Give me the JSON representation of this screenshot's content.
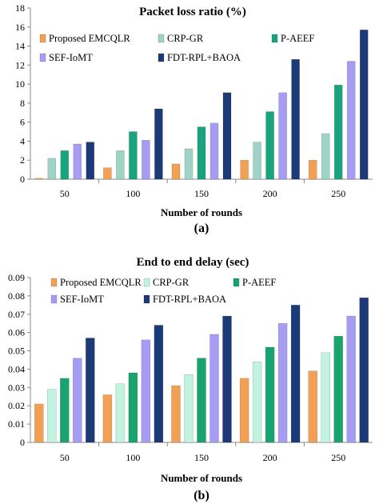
{
  "chart_data": [
    {
      "type": "bar",
      "title": "Packet loss ratio (%)",
      "xlabel": "Number of rounds",
      "ylabel": "",
      "caption": "(a)",
      "categories": [
        "50",
        "100",
        "150",
        "200",
        "250"
      ],
      "ylim": [
        0,
        18
      ],
      "yticks": [
        0,
        2,
        4,
        6,
        8,
        10,
        12,
        14,
        16,
        18
      ],
      "series": [
        {
          "name": "Proposed EMCQLR",
          "color": "#f2a154",
          "values": [
            0.1,
            1.2,
            1.6,
            2.0,
            2.0
          ]
        },
        {
          "name": "CRP-GR",
          "color": "#9fd3c6",
          "values": [
            2.2,
            3.0,
            3.2,
            3.9,
            4.8
          ]
        },
        {
          "name": "P-AEEF",
          "color": "#18a57e",
          "values": [
            3.0,
            5.0,
            5.5,
            7.1,
            9.9
          ]
        },
        {
          "name": "SEF-IoMT",
          "color": "#a69cf3",
          "values": [
            3.7,
            4.1,
            5.9,
            9.1,
            12.4
          ]
        },
        {
          "name": "FDT-RPL+BAOA",
          "color": "#1c3a78",
          "values": [
            3.9,
            7.4,
            9.1,
            12.6,
            15.7
          ]
        }
      ],
      "legend": "top, two rows",
      "grid": false
    },
    {
      "type": "bar",
      "title": "End to end delay (sec)",
      "xlabel": "Number of rounds",
      "ylabel": "",
      "caption": "(b)",
      "categories": [
        "50",
        "100",
        "150",
        "200",
        "250"
      ],
      "ylim": [
        0,
        0.09
      ],
      "yticks": [
        "0",
        "0.01",
        "0.02",
        "0.03",
        "0.04",
        "0.05",
        "0.06",
        "0.07",
        "0.08",
        "0.09"
      ],
      "series": [
        {
          "name": "Proposed EMCQLR",
          "color": "#f2a154",
          "values": [
            0.021,
            0.026,
            0.031,
            0.035,
            0.039
          ]
        },
        {
          "name": "CRP-GR",
          "color": "#c2f2e0",
          "values": [
            0.029,
            0.032,
            0.037,
            0.044,
            0.049
          ]
        },
        {
          "name": "P-AEEF",
          "color": "#19a46f",
          "values": [
            0.035,
            0.038,
            0.046,
            0.052,
            0.058
          ]
        },
        {
          "name": "SEF-IoMT",
          "color": "#a69cf3",
          "values": [
            0.046,
            0.056,
            0.059,
            0.065,
            0.069
          ]
        },
        {
          "name": "FDT-RPL+BAOA",
          "color": "#1c3a78",
          "values": [
            0.057,
            0.064,
            0.069,
            0.075,
            0.079
          ]
        }
      ],
      "legend": "top, two rows",
      "grid": false
    }
  ]
}
